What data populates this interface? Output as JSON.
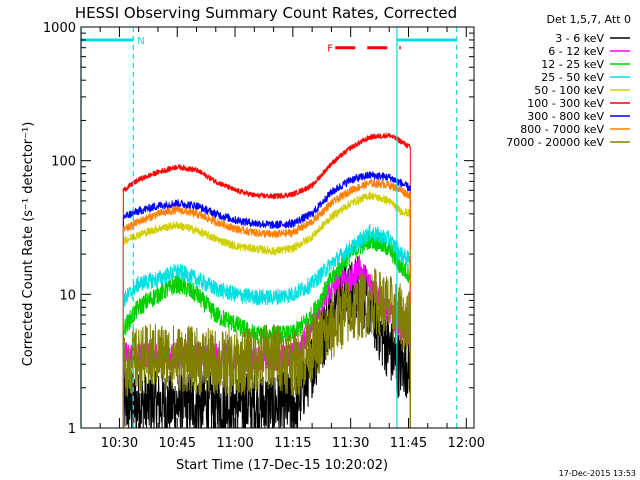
{
  "chart_data": {
    "type": "line",
    "title": "HESSI Observing Summary Count Rates, Corrected",
    "xlabel": "Start Time (17-Dec-15 10:20:02)",
    "ylabel": "Corrected Count Rate (s⁻¹ detector⁻¹)",
    "y_scale": "log",
    "ylim": [
      1,
      1000
    ],
    "xlim_minutes": [
      620.03,
      722
    ],
    "x_ticks": [
      {
        "minute": 630,
        "label": "10:30"
      },
      {
        "minute": 645,
        "label": "10:45"
      },
      {
        "minute": 660,
        "label": "11:00"
      },
      {
        "minute": 675,
        "label": "11:15"
      },
      {
        "minute": 690,
        "label": "11:30"
      },
      {
        "minute": 705,
        "label": "11:45"
      },
      {
        "minute": 720,
        "label": "12:00"
      }
    ],
    "y_ticks": [
      {
        "value": 1,
        "label": "1"
      },
      {
        "value": 10,
        "label": "10"
      },
      {
        "value": 100,
        "label": "100"
      },
      {
        "value": 1000,
        "label": "1000"
      }
    ],
    "legend_title": "Det 1,5,7, Att 0",
    "legend_position": "right",
    "data_start_minute": 631,
    "data_end_minute": 705.5,
    "bars": [
      {
        "label": "N",
        "start_minute": 620.03,
        "end_minute": 633.6,
        "level": 800,
        "color": "#00e0e0",
        "style": "solid"
      },
      {
        "label": "",
        "start_minute": 702.0,
        "end_minute": 717.5,
        "level": 800,
        "color": "#00e0e0",
        "style": "solid"
      },
      {
        "label": "F",
        "start_minute": 686,
        "end_minute": 703,
        "level": 700,
        "color": "#ff0000",
        "style": "dashed"
      }
    ],
    "vlines": [
      {
        "minute": 620.03,
        "color": "#00e0e0",
        "style": "solid"
      },
      {
        "minute": 633.6,
        "color": "#00e0e0",
        "style": "dashed"
      },
      {
        "minute": 702.0,
        "color": "#00e0e0",
        "style": "solid"
      },
      {
        "minute": 717.5,
        "color": "#00e0e0",
        "style": "dashed"
      }
    ],
    "series": [
      {
        "name": "3 - 6 keV",
        "color": "#000000",
        "noise": 0.25,
        "floor": 1,
        "values": [
          [
            631,
            1.5
          ],
          [
            640,
            1.5
          ],
          [
            650,
            1.5
          ],
          [
            660,
            1.5
          ],
          [
            670,
            1.5
          ],
          [
            676,
            1.5
          ],
          [
            680,
            3
          ],
          [
            684,
            6
          ],
          [
            686,
            9
          ],
          [
            688,
            11
          ],
          [
            690,
            10
          ],
          [
            692,
            12
          ],
          [
            694,
            9
          ],
          [
            696,
            7
          ],
          [
            698,
            5
          ],
          [
            700,
            4
          ],
          [
            702,
            3
          ],
          [
            705.5,
            3
          ]
        ]
      },
      {
        "name": "6 - 12 keV",
        "color": "#ff00ff",
        "noise": 0.1,
        "floor": 1,
        "values": [
          [
            631,
            3.5
          ],
          [
            640,
            3.5
          ],
          [
            650,
            3.5
          ],
          [
            660,
            3.3
          ],
          [
            670,
            3.3
          ],
          [
            676,
            3.5
          ],
          [
            680,
            6
          ],
          [
            684,
            10
          ],
          [
            688,
            14
          ],
          [
            690,
            12
          ],
          [
            692,
            16
          ],
          [
            694,
            13
          ],
          [
            696,
            11
          ],
          [
            698,
            9
          ],
          [
            702,
            6
          ],
          [
            705.5,
            5
          ]
        ]
      },
      {
        "name": "12 - 25 keV",
        "color": "#00d000",
        "noise": 0.07,
        "floor": 1,
        "values": [
          [
            631,
            5.5
          ],
          [
            635,
            8
          ],
          [
            640,
            10
          ],
          [
            645,
            12
          ],
          [
            650,
            10
          ],
          [
            655,
            7
          ],
          [
            660,
            6
          ],
          [
            665,
            5
          ],
          [
            670,
            5
          ],
          [
            675,
            5
          ],
          [
            680,
            7
          ],
          [
            685,
            13
          ],
          [
            690,
            20
          ],
          [
            695,
            26
          ],
          [
            700,
            22
          ],
          [
            703,
            16
          ],
          [
            705.5,
            14
          ]
        ]
      },
      {
        "name": "25 - 50 keV",
        "color": "#00e0e0",
        "noise": 0.06,
        "floor": 1,
        "values": [
          [
            631,
            9
          ],
          [
            635,
            12
          ],
          [
            640,
            13
          ],
          [
            645,
            15
          ],
          [
            650,
            13
          ],
          [
            655,
            11
          ],
          [
            660,
            10
          ],
          [
            665,
            9.5
          ],
          [
            670,
            9.5
          ],
          [
            675,
            10
          ],
          [
            680,
            12
          ],
          [
            685,
            17
          ],
          [
            690,
            22
          ],
          [
            695,
            29
          ],
          [
            700,
            26
          ],
          [
            703,
            20
          ],
          [
            705.5,
            18
          ]
        ]
      },
      {
        "name": "50 - 100 keV",
        "color": "#d0d000",
        "noise": 0.03,
        "floor": 1,
        "values": [
          [
            631,
            25
          ],
          [
            635,
            28
          ],
          [
            640,
            31
          ],
          [
            645,
            33
          ],
          [
            650,
            30
          ],
          [
            655,
            26
          ],
          [
            660,
            23
          ],
          [
            665,
            22
          ],
          [
            670,
            21
          ],
          [
            675,
            22
          ],
          [
            680,
            27
          ],
          [
            685,
            38
          ],
          [
            690,
            48
          ],
          [
            695,
            55
          ],
          [
            700,
            50
          ],
          [
            703,
            42
          ],
          [
            705.5,
            40
          ]
        ]
      },
      {
        "name": "100 - 300 keV",
        "color": "#ff0000",
        "noise": 0.02,
        "floor": 1,
        "values": [
          [
            631,
            60
          ],
          [
            635,
            72
          ],
          [
            640,
            82
          ],
          [
            645,
            90
          ],
          [
            650,
            85
          ],
          [
            655,
            70
          ],
          [
            660,
            60
          ],
          [
            665,
            55
          ],
          [
            670,
            54
          ],
          [
            675,
            56
          ],
          [
            680,
            65
          ],
          [
            685,
            95
          ],
          [
            690,
            125
          ],
          [
            695,
            150
          ],
          [
            700,
            155
          ],
          [
            703,
            140
          ],
          [
            705.5,
            125
          ]
        ]
      },
      {
        "name": "300 - 800 keV",
        "color": "#0000ff",
        "noise": 0.03,
        "floor": 1,
        "values": [
          [
            631,
            38
          ],
          [
            635,
            42
          ],
          [
            640,
            46
          ],
          [
            645,
            48
          ],
          [
            650,
            46
          ],
          [
            655,
            40
          ],
          [
            660,
            36
          ],
          [
            665,
            34
          ],
          [
            670,
            33
          ],
          [
            675,
            34
          ],
          [
            680,
            40
          ],
          [
            685,
            58
          ],
          [
            690,
            72
          ],
          [
            695,
            78
          ],
          [
            700,
            75
          ],
          [
            703,
            68
          ],
          [
            705.5,
            62
          ]
        ]
      },
      {
        "name": "800 - 7000 keV",
        "color": "#ff8000",
        "noise": 0.03,
        "floor": 1,
        "values": [
          [
            631,
            30
          ],
          [
            635,
            35
          ],
          [
            640,
            40
          ],
          [
            645,
            43
          ],
          [
            650,
            40
          ],
          [
            655,
            35
          ],
          [
            660,
            31
          ],
          [
            665,
            29
          ],
          [
            670,
            28
          ],
          [
            675,
            29
          ],
          [
            680,
            35
          ],
          [
            685,
            48
          ],
          [
            690,
            60
          ],
          [
            695,
            68
          ],
          [
            700,
            66
          ],
          [
            703,
            60
          ],
          [
            705.5,
            55
          ]
        ]
      },
      {
        "name": "7000 - 20000 keV",
        "color": "#808000",
        "noise": 0.25,
        "floor": 1,
        "values": [
          [
            631,
            3
          ],
          [
            640,
            3.5
          ],
          [
            650,
            3.2
          ],
          [
            660,
            3
          ],
          [
            670,
            3.5
          ],
          [
            676,
            3
          ],
          [
            680,
            4
          ],
          [
            684,
            5
          ],
          [
            688,
            7
          ],
          [
            692,
            8
          ],
          [
            696,
            9
          ],
          [
            700,
            8
          ],
          [
            702,
            7
          ],
          [
            705.5,
            6
          ]
        ]
      }
    ],
    "grid": false
  },
  "footer": {
    "timestamp": "17-Dec-2015 13:53"
  }
}
